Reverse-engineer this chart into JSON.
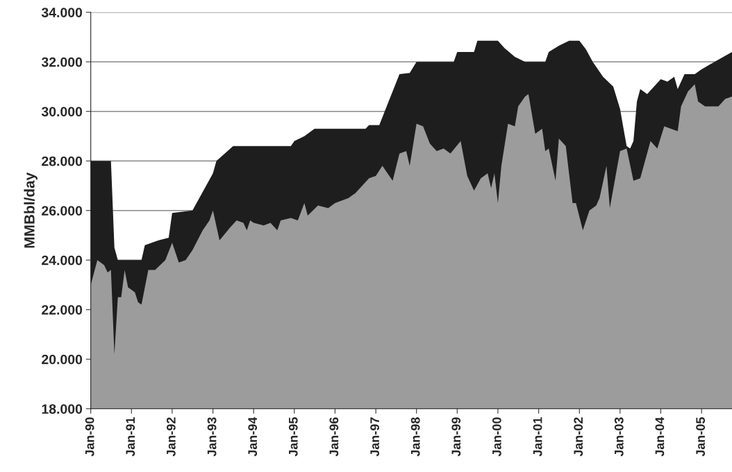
{
  "chart_data": {
    "type": "area",
    "ylabel": "MMBbl/day",
    "series": [
      {
        "color": "#1e1e1e",
        "x": [
          "1990-01",
          "1990-07",
          "1990-08",
          "1990-09",
          "1991-04",
          "1991-05",
          "1991-09",
          "1991-12",
          "1992-01",
          "1992-07",
          "1993-01",
          "1993-02",
          "1993-07",
          "1994-12",
          "1995-01",
          "1995-04",
          "1995-07",
          "1996-10",
          "1996-11",
          "1997-02",
          "1997-08",
          "1997-11",
          "1998-01",
          "1998-12",
          "1999-01",
          "1999-06",
          "1999-07",
          "2000-01",
          "2000-03",
          "2000-06",
          "2000-09",
          "2001-03",
          "2001-04",
          "2001-07",
          "2001-10",
          "2002-01",
          "2002-03",
          "2002-05",
          "2002-08",
          "2002-11",
          "2003-01",
          "2003-02",
          "2003-03",
          "2003-04",
          "2003-05",
          "2003-06",
          "2003-07",
          "2003-09",
          "2003-11",
          "2004-01",
          "2004-03",
          "2004-05",
          "2004-06",
          "2004-08",
          "2004-11",
          "2005-01",
          "2005-10"
        ],
        "values": [
          28.0,
          28.0,
          24.5,
          24.0,
          24.0,
          24.6,
          24.8,
          24.9,
          25.9,
          26.0,
          27.5,
          28.0,
          28.6,
          28.6,
          28.8,
          29.0,
          29.3,
          29.3,
          29.45,
          29.45,
          31.5,
          31.55,
          32.0,
          32.0,
          32.4,
          32.4,
          32.85,
          32.85,
          32.55,
          32.2,
          32.0,
          32.0,
          32.4,
          32.65,
          32.85,
          32.85,
          32.5,
          32.0,
          31.4,
          31.0,
          30.1,
          29.3,
          28.6,
          28.5,
          28.8,
          30.4,
          30.9,
          30.7,
          31.0,
          31.3,
          31.2,
          31.4,
          30.9,
          31.5,
          31.5,
          31.7,
          32.4
        ]
      },
      {
        "color": "#9c9c9c",
        "x": [
          "1990-01",
          "1990-03",
          "1990-05",
          "1990-06",
          "1990-07",
          "1990-08",
          "1990-09",
          "1990-10",
          "1990-11",
          "1990-12",
          "1991-02",
          "1991-03",
          "1991-04",
          "1991-06",
          "1991-08",
          "1991-11",
          "1992-01",
          "1992-03",
          "1992-05",
          "1992-07",
          "1992-10",
          "1992-12",
          "1993-01",
          "1993-03",
          "1993-06",
          "1993-08",
          "1993-10",
          "1993-11",
          "1993-12",
          "1994-01",
          "1994-04",
          "1994-06",
          "1994-08",
          "1994-09",
          "1994-12",
          "1995-02",
          "1995-04",
          "1995-05",
          "1995-08",
          "1995-11",
          "1996-01",
          "1996-05",
          "1996-07",
          "1996-11",
          "1997-01",
          "1997-03",
          "1997-06",
          "1997-08",
          "1997-10",
          "1997-11",
          "1998-01",
          "1998-03",
          "1998-05",
          "1998-07",
          "1998-09",
          "1998-11",
          "1999-02",
          "1999-04",
          "1999-06",
          "1999-08",
          "1999-10",
          "1999-11",
          "1999-12",
          "2000-01",
          "2000-02",
          "2000-04",
          "2000-06",
          "2000-07",
          "2000-09",
          "2000-10",
          "2000-12",
          "2001-02",
          "2001-03",
          "2001-04",
          "2001-06",
          "2001-07",
          "2001-09",
          "2001-11",
          "2001-12",
          "2002-02",
          "2002-04",
          "2002-06",
          "2002-07",
          "2002-09",
          "2002-10",
          "2003-01",
          "2003-03",
          "2003-05",
          "2003-07",
          "2003-10",
          "2003-12",
          "2004-02",
          "2004-04",
          "2004-06",
          "2004-07",
          "2004-09",
          "2004-11",
          "2004-12",
          "2005-02",
          "2005-06",
          "2005-08",
          "2005-10"
        ],
        "values": [
          23.0,
          24.0,
          23.8,
          23.5,
          23.6,
          20.2,
          22.5,
          22.5,
          23.6,
          22.9,
          22.7,
          22.3,
          22.2,
          23.6,
          23.6,
          24.0,
          24.7,
          23.9,
          24.0,
          24.4,
          25.2,
          25.6,
          26.0,
          24.8,
          25.3,
          25.6,
          25.5,
          25.2,
          25.6,
          25.5,
          25.4,
          25.5,
          25.2,
          25.6,
          25.7,
          25.6,
          26.3,
          25.8,
          26.2,
          26.1,
          26.3,
          26.5,
          26.7,
          27.3,
          27.4,
          27.8,
          27.2,
          28.3,
          28.4,
          27.8,
          29.5,
          29.4,
          28.7,
          28.4,
          28.5,
          28.3,
          28.8,
          27.4,
          26.8,
          27.3,
          27.5,
          26.9,
          27.5,
          26.3,
          27.8,
          29.5,
          29.4,
          30.2,
          30.6,
          30.7,
          29.1,
          29.3,
          28.4,
          28.5,
          27.2,
          28.9,
          28.6,
          26.3,
          26.3,
          25.2,
          26.0,
          26.2,
          26.5,
          27.8,
          26.1,
          28.4,
          28.5,
          27.2,
          27.3,
          28.8,
          28.5,
          29.4,
          29.3,
          29.2,
          30.2,
          30.8,
          31.1,
          30.4,
          30.2,
          30.2,
          30.5,
          30.6
        ]
      }
    ],
    "xlim": [
      "1990-01",
      "2005-10"
    ],
    "xticks": [
      {
        "value": "1990-01",
        "label": "Jan-90"
      },
      {
        "value": "1991-01",
        "label": "Jan-91"
      },
      {
        "value": "1992-01",
        "label": "Jan-92"
      },
      {
        "value": "1993-01",
        "label": "Jan-93"
      },
      {
        "value": "1994-01",
        "label": "Jan-94"
      },
      {
        "value": "1995-01",
        "label": "Jan-95"
      },
      {
        "value": "1996-01",
        "label": "Jan-96"
      },
      {
        "value": "1997-01",
        "label": "Jan-97"
      },
      {
        "value": "1998-01",
        "label": "Jan-98"
      },
      {
        "value": "1999-01",
        "label": "Jan-99"
      },
      {
        "value": "2000-01",
        "label": "Jan-00"
      },
      {
        "value": "2001-01",
        "label": "Jan-01"
      },
      {
        "value": "2002-01",
        "label": "Jan-02"
      },
      {
        "value": "2003-01",
        "label": "Jan-03"
      },
      {
        "value": "2004-01",
        "label": "Jan-04"
      },
      {
        "value": "2005-01",
        "label": "Jan-05"
      }
    ],
    "ylim": [
      18,
      34
    ],
    "yticks": [
      {
        "value": 18,
        "label": "18.000"
      },
      {
        "value": 20,
        "label": "20.000"
      },
      {
        "value": 22,
        "label": "22.000"
      },
      {
        "value": 24,
        "label": "24.000"
      },
      {
        "value": 26,
        "label": "26.000"
      },
      {
        "value": 28,
        "label": "28.000"
      },
      {
        "value": 30,
        "label": "30.000"
      },
      {
        "value": 32,
        "label": "32.000"
      },
      {
        "value": 34,
        "label": "34.000"
      }
    ],
    "grid": "y",
    "legend": false
  }
}
